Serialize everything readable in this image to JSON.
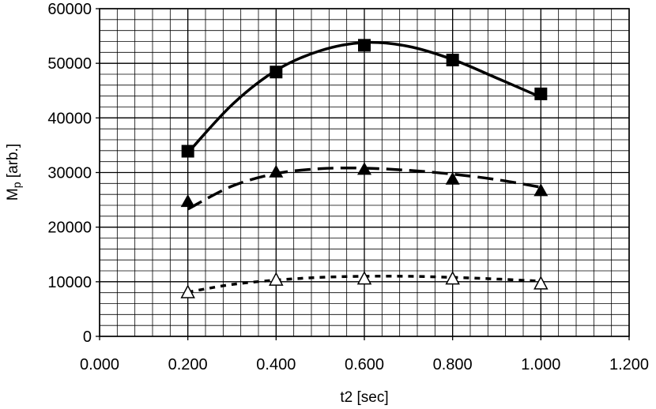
{
  "chart_data": {
    "type": "scatter",
    "title": "",
    "xlabel": "t2 [sec]",
    "ylabel_main": "M",
    "ylabel_sub": "p",
    "ylabel_rest": " [arb.]",
    "xlim": [
      0.0,
      1.2
    ],
    "ylim": [
      0,
      60000
    ],
    "x_ticks": [
      "0.000",
      "0.200",
      "0.400",
      "0.600",
      "0.800",
      "1.000",
      "1.200"
    ],
    "y_ticks": [
      "0",
      "10000",
      "20000",
      "30000",
      "40000",
      "50000",
      "60000"
    ],
    "grid": true,
    "grid_minor_x_step": 0.04,
    "grid_minor_y_step": 2000,
    "series": [
      {
        "marker": "filled-square",
        "line": "solid",
        "x": [
          0.2,
          0.4,
          0.6,
          0.8,
          1.0
        ],
        "y": [
          33900,
          48400,
          53300,
          50600,
          44400
        ],
        "trend_x": [
          0.2,
          0.3,
          0.4,
          0.5,
          0.6,
          0.7,
          0.8,
          0.9,
          1.0
        ],
        "trend_y": [
          33600,
          42400,
          48700,
          52300,
          53800,
          53100,
          50700,
          47300,
          43800
        ]
      },
      {
        "marker": "filled-triangle",
        "line": "dashed",
        "x": [
          0.2,
          0.4,
          0.6,
          0.8,
          1.0
        ],
        "y": [
          24700,
          30100,
          30600,
          28800,
          26700
        ],
        "trend_x": [
          0.2,
          0.3,
          0.4,
          0.5,
          0.6,
          0.7,
          0.8,
          0.9,
          1.0
        ],
        "trend_y": [
          23300,
          27500,
          29800,
          30700,
          30800,
          30400,
          29700,
          28700,
          27300
        ]
      },
      {
        "marker": "open-triangle",
        "line": "dotted",
        "x": [
          0.2,
          0.4,
          0.6,
          0.8,
          1.0
        ],
        "y": [
          8100,
          10400,
          10600,
          10600,
          9700
        ],
        "trend_x": [
          0.2,
          0.3,
          0.4,
          0.5,
          0.6,
          0.7,
          0.8,
          0.9,
          1.0
        ],
        "trend_y": [
          8100,
          9500,
          10300,
          10800,
          11000,
          11000,
          10800,
          10500,
          10100
        ]
      }
    ]
  }
}
